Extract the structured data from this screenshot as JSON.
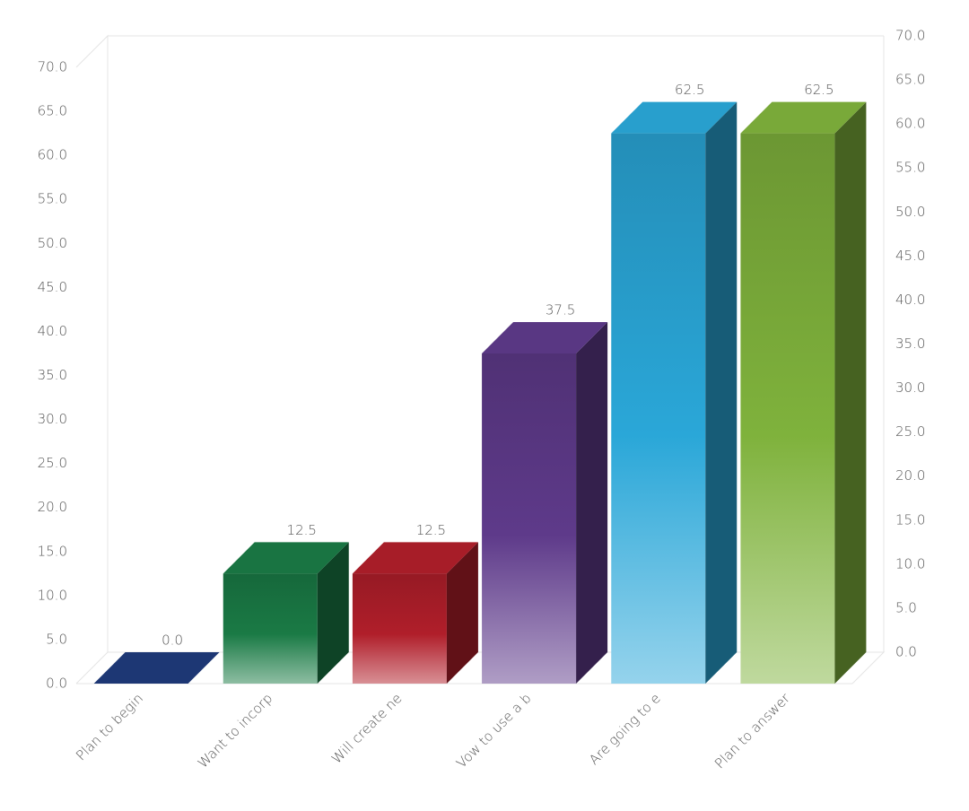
{
  "chart_data": {
    "type": "bar3d",
    "categories": [
      "Plan to begin",
      "Want to incorp",
      "Will create ne",
      "Vow to use a b",
      "Are going to e",
      "Plan to answer"
    ],
    "values": [
      0,
      12.5,
      12.5,
      37.5,
      62.5,
      62.5
    ],
    "value_labels": [
      "0.0",
      "12.5",
      "12.5",
      "37.5",
      "62.5",
      "62.5"
    ],
    "colors": [
      "#1f3a7a",
      "#1a7a45",
      "#b01e2a",
      "#5e3a8a",
      "#2aa7d8",
      "#7fb23c"
    ],
    "ylim": [
      0,
      70
    ],
    "yticks": [
      {
        "value": 0,
        "label": "0.0"
      },
      {
        "value": 5,
        "label": "5.0"
      },
      {
        "value": 10,
        "label": "10.0"
      },
      {
        "value": 15,
        "label": "15.0"
      },
      {
        "value": 20,
        "label": "20.0"
      },
      {
        "value": 25,
        "label": "25.0"
      },
      {
        "value": 30,
        "label": "30.0"
      },
      {
        "value": 35,
        "label": "35.0"
      },
      {
        "value": 40,
        "label": "40.0"
      },
      {
        "value": 45,
        "label": "45.0"
      },
      {
        "value": 50,
        "label": "50.0"
      },
      {
        "value": 55,
        "label": "55.0"
      },
      {
        "value": 60,
        "label": "60.0"
      },
      {
        "value": 65,
        "label": "65.0"
      },
      {
        "value": 70,
        "label": "70.0"
      }
    ],
    "y2lim": [
      0,
      70
    ],
    "y2ticks": [
      {
        "value": 0,
        "label": "0.0"
      },
      {
        "value": 5,
        "label": "5.0"
      },
      {
        "value": 10,
        "label": "10.0"
      },
      {
        "value": 15,
        "label": "15.0"
      },
      {
        "value": 20,
        "label": "20.0"
      },
      {
        "value": 25,
        "label": "25.0"
      },
      {
        "value": 30,
        "label": "30.0"
      },
      {
        "value": 35,
        "label": "35.0"
      },
      {
        "value": 40,
        "label": "40.0"
      },
      {
        "value": 45,
        "label": "45.0"
      },
      {
        "value": 50,
        "label": "50.0"
      },
      {
        "value": 55,
        "label": "55.0"
      },
      {
        "value": 60,
        "label": "60.0"
      },
      {
        "value": 65,
        "label": "65.0"
      },
      {
        "value": 70,
        "label": "70.0"
      }
    ],
    "grid": false
  }
}
